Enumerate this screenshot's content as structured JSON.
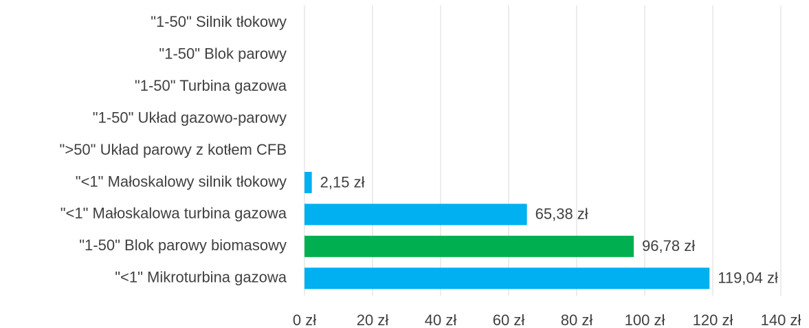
{
  "chart_data": {
    "type": "bar",
    "orientation": "horizontal",
    "categories": [
      "\"1-50\" Silnik tłokowy",
      "\"1-50\" Blok parowy",
      "\"1-50\" Turbina gazowa",
      "\"1-50\" Układ gazowo-parowy",
      "\">50\" Układ parowy z kotłem CFB",
      "\"<1\" Małoskalowy silnik tłokowy",
      "\"<1\" Małoskalowa turbina gazowa",
      "\"1-50\" Blok parowy biomasowy",
      "\"<1\" Mikroturbina gazowa"
    ],
    "values": [
      null,
      null,
      null,
      null,
      null,
      2.15,
      65.38,
      96.78,
      119.04
    ],
    "value_labels": [
      null,
      null,
      null,
      null,
      null,
      "2,15 zł",
      "65,38 zł",
      "96,78 zł",
      "119,04 zł"
    ],
    "colors": [
      "#00b0f0",
      "#00b0f0",
      "#00b0f0",
      "#00b0f0",
      "#00b0f0",
      "#00b0f0",
      "#00b0f0",
      "#00b050",
      "#00b0f0"
    ],
    "xlim": [
      0,
      140
    ],
    "xticks": [
      {
        "value": 0,
        "label": "0 zł"
      },
      {
        "value": 20,
        "label": "20 zł"
      },
      {
        "value": 40,
        "label": "40 zł"
      },
      {
        "value": 60,
        "label": "60 zł"
      },
      {
        "value": 80,
        "label": "80 zł"
      },
      {
        "value": 100,
        "label": "100 zł"
      },
      {
        "value": 120,
        "label": "120 zł"
      },
      {
        "value": 140,
        "label": "140 zł"
      }
    ],
    "grid": true
  }
}
